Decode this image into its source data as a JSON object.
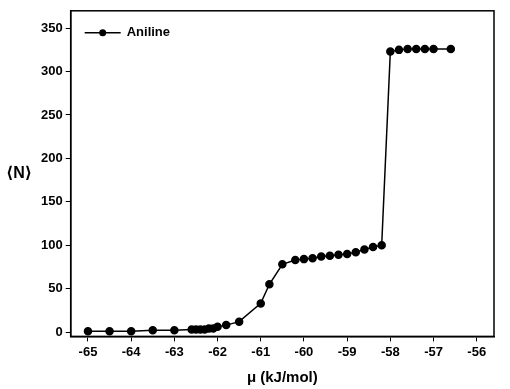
{
  "chart_data": {
    "type": "line",
    "x_label": "μ (kJ/mol)",
    "y_label": "⟨N⟩",
    "x": [
      -65,
      -64.5,
      -64,
      -63.5,
      -63,
      -62.6,
      -62.5,
      -62.4,
      -62.3,
      -62.2,
      -62.1,
      -62,
      -61.8,
      -61.5,
      -61,
      -60.8,
      -60.5,
      -60.2,
      -60,
      -59.8,
      -59.6,
      -59.4,
      -59.2,
      -59,
      -58.8,
      -58.6,
      -58.4,
      -58.2,
      -58,
      -57.8,
      -57.6,
      -57.4,
      -57.2,
      -57,
      -56.6
    ],
    "series": [
      {
        "name": "Aniline",
        "color": "#000000",
        "marker": "circle",
        "line_style": "solid",
        "values": [
          1,
          1,
          1,
          2,
          2,
          3,
          3,
          3,
          3,
          4,
          4,
          6,
          8,
          12,
          33,
          55,
          78,
          83,
          84,
          85,
          87,
          88,
          89,
          90,
          92,
          95,
          98,
          100,
          323,
          325,
          326,
          326,
          326,
          326,
          326
        ]
      }
    ],
    "xlim": [
      -65.4,
      -55.6
    ],
    "xticks": [
      -65,
      -64,
      -63,
      -62,
      -61,
      -60,
      -59,
      -58,
      -57,
      -56
    ],
    "ylim": [
      -5,
      370
    ],
    "yticks": [
      0,
      50,
      100,
      150,
      200,
      250,
      300,
      350
    ],
    "grid": false,
    "legend": "upper left"
  }
}
